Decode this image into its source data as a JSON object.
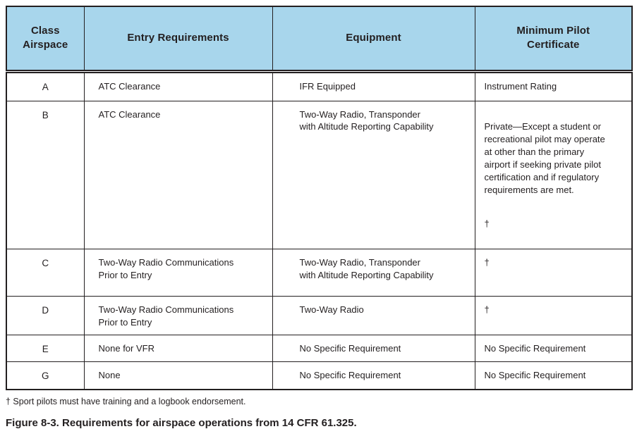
{
  "table": {
    "headers": {
      "class_airspace": "Class\nAirspace",
      "entry_requirements": "Entry Requirements",
      "equipment": "Equipment",
      "minimum_pilot_certificate": "Minimum Pilot\nCertificate"
    },
    "rows": [
      {
        "class": "A",
        "entry": "ATC Clearance",
        "equipment": "IFR Equipped",
        "certificate": "Instrument Rating",
        "certificate_note": ""
      },
      {
        "class": "B",
        "entry": "ATC Clearance",
        "equipment": "Two-Way Radio, Transponder\nwith Altitude Reporting Capability",
        "certificate": "Private—Except a student or\nrecreational pilot may operate\nat other than the primary\nairport if seeking private pilot\ncertification and if regulatory\nrequirements are met.",
        "certificate_note": "†"
      },
      {
        "class": "C",
        "entry": "Two-Way Radio Communications\nPrior to Entry",
        "equipment": "Two-Way Radio, Transponder\nwith Altitude Reporting Capability",
        "certificate": "†",
        "certificate_note": ""
      },
      {
        "class": "D",
        "entry": "Two-Way Radio Communications\nPrior to Entry",
        "equipment": "Two-Way Radio",
        "certificate": "†",
        "certificate_note": ""
      },
      {
        "class": "E",
        "entry": "None for VFR",
        "equipment": "No Specific Requirement",
        "certificate": "No Specific Requirement",
        "certificate_note": ""
      },
      {
        "class": "G",
        "entry": "None",
        "equipment": "No Specific Requirement",
        "certificate": "No Specific Requirement",
        "certificate_note": ""
      }
    ]
  },
  "footnote": "† Sport pilots must have training and a logbook endorsement.",
  "caption": "Figure 8-3. Requirements for airspace operations from 14 CFR 61.325.",
  "colors": {
    "header_bg": "#a8d6ec",
    "border": "#231f20",
    "text": "#231f20"
  }
}
